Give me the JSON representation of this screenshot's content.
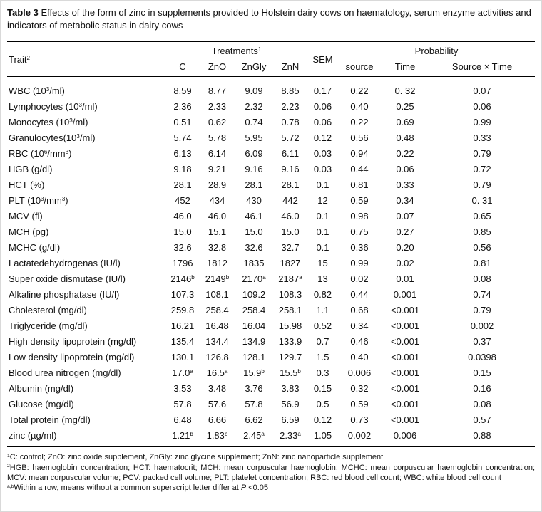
{
  "title": {
    "label": "Table 3",
    "text": " Effects of the form of zinc in supplements provided to Holstein dairy cows on haematology, serum enzyme activities and indicators of metabolic status in dairy cows"
  },
  "table": {
    "header": {
      "trait": "Trait^2",
      "treatments": "Treatments^1",
      "sem": "SEM",
      "probability": "Probability",
      "treatment_cols": [
        "C",
        "ZnO",
        "ZnGly",
        "ZnN"
      ],
      "probability_cols": [
        "source",
        "Time",
        "Source × Time"
      ]
    },
    "rows": [
      {
        "trait": "WBC (10^3/ml)",
        "values": [
          "8.59",
          "8.77",
          "9.09",
          "8.85",
          "0.17",
          "0.22",
          "0. 32",
          "0.07"
        ]
      },
      {
        "trait": "Lymphocytes (10^3/ml)",
        "values": [
          "2.36",
          "2.33",
          "2.32",
          "2.23",
          "0.06",
          "0.40",
          "0.25",
          "0.06"
        ]
      },
      {
        "trait": "Monocytes (10^3/ml)",
        "values": [
          "0.51",
          "0.62",
          "0.74",
          "0.78",
          "0.06",
          "0.22",
          "0.69",
          "0.99"
        ]
      },
      {
        "trait": "Granulocytes(10^3/ml)",
        "values": [
          "5.74",
          "5.78",
          "5.95",
          "5.72",
          "0.12",
          "0.56",
          "0.48",
          "0.33"
        ]
      },
      {
        "trait": "RBC (10^6/mm^3)",
        "values": [
          "6.13",
          "6.14",
          "6.09",
          "6.11",
          "0.03",
          "0.94",
          "0.22",
          "0.79"
        ]
      },
      {
        "trait": "HGB (g/dl)",
        "values": [
          "9.18",
          "9.21",
          "9.16",
          "9.16",
          "0.03",
          "0.44",
          "0.06",
          "0.72"
        ]
      },
      {
        "trait": "HCT (%)",
        "values": [
          "28.1",
          "28.9",
          "28.1",
          "28.1",
          "0.1",
          "0.81",
          "0.33",
          "0.79"
        ]
      },
      {
        "trait": "PLT (10^3/mm^3)",
        "values": [
          "452",
          "434",
          "430",
          "442",
          "12",
          "0.59",
          "0.34",
          "0. 31"
        ]
      },
      {
        "trait": "MCV (fl)",
        "values": [
          "46.0",
          "46.0",
          "46.1",
          "46.0",
          "0.1",
          "0.98",
          "0.07",
          "0.65"
        ]
      },
      {
        "trait": "MCH (pg)",
        "values": [
          "15.0",
          "15.1",
          "15.0",
          "15.0",
          "0.1",
          "0.75",
          "0.27",
          "0.85"
        ]
      },
      {
        "trait": "MCHC (g/dl)",
        "values": [
          "32.6",
          "32.8",
          "32.6",
          "32.7",
          "0.1",
          "0.36",
          "0.20",
          "0.56"
        ]
      },
      {
        "trait": "Lactatedehydrogenas (IU/l)",
        "values": [
          "1796",
          "1812",
          "1835",
          "1827",
          "15",
          "0.99",
          "0.02",
          "0.81"
        ]
      },
      {
        "trait": "Super oxide dismutase (IU/l)",
        "values": [
          "2146^b",
          "2149^b",
          "2170^a",
          "2187^a",
          "13",
          "0.02",
          "0.01",
          "0.08"
        ]
      },
      {
        "trait": "Alkaline phosphatase (IU/l)",
        "values": [
          "107.3",
          "108.1",
          "109.2",
          "108.3",
          "0.82",
          "0.44",
          "0.001",
          "0.74"
        ]
      },
      {
        "trait": "Cholesterol (mg/dl)",
        "values": [
          "259.8",
          "258.4",
          "258.4",
          "258.1",
          "1.1",
          "0.68",
          "<0.001",
          "0.79"
        ]
      },
      {
        "trait": "Triglyceride (mg/dl)",
        "values": [
          "16.21",
          "16.48",
          "16.04",
          "15.98",
          "0.52",
          "0.34",
          "<0.001",
          "0.002"
        ]
      },
      {
        "trait": "High density lipoprotein (mg/dl)",
        "values": [
          "135.4",
          "134.4",
          "134.9",
          "133.9",
          "0.7",
          "0.46",
          "<0.001",
          "0.37"
        ]
      },
      {
        "trait": "Low density lipoprotein (mg/dl)",
        "values": [
          "130.1",
          "126.8",
          "128.1",
          "129.7",
          "1.5",
          "0.40",
          "<0.001",
          "0.0398"
        ]
      },
      {
        "trait": "Blood urea nitrogen (mg/dl)",
        "values": [
          "17.0^a",
          "16.5^a",
          "15.9^b",
          "15.5^b",
          "0.3",
          "0.006",
          "<0.001",
          "0.15"
        ]
      },
      {
        "trait": "Albumin (mg/dl)",
        "values": [
          "3.53",
          "3.48",
          "3.76",
          "3.83",
          "0.15",
          "0.32",
          "<0.001",
          "0.16"
        ]
      },
      {
        "trait": "Glucose (mg/dl)",
        "values": [
          "57.8",
          "57.6",
          "57.8",
          "56.9",
          "0.5",
          "0.59",
          "<0.001",
          "0.08"
        ]
      },
      {
        "trait": "Total protein (mg/dl)",
        "values": [
          "6.48",
          "6.66",
          "6.62",
          "6.59",
          "0.12",
          "0.73",
          "<0.001",
          "0.57"
        ]
      },
      {
        "trait": "zinc (µg/ml)",
        "values": [
          "1.21^b",
          "1.83^b",
          "2.45^a",
          "2.33^a",
          "1.05",
          "0.002",
          "0.006",
          "0.88"
        ]
      }
    ]
  },
  "footnotes": [
    "^1C: control; ZnO: zinc oxide supplement, ZnGly: zinc glycine supplement; ZnN: zinc nanoparticle supplement",
    "^2HGB: haemoglobin concentration; HCT: haematocrit; MCH: mean corpuscular haemoglobin; MCHC: mean corpuscular haemoglobin concentration; MCV: mean corpuscular volume; PCV: packed cell volume; PLT: platelet concentration; RBC: red blood cell count; WBC: white blood cell count",
    "^{a,b}Within a row, means without a common superscript letter differ at *P* <0.05"
  ]
}
